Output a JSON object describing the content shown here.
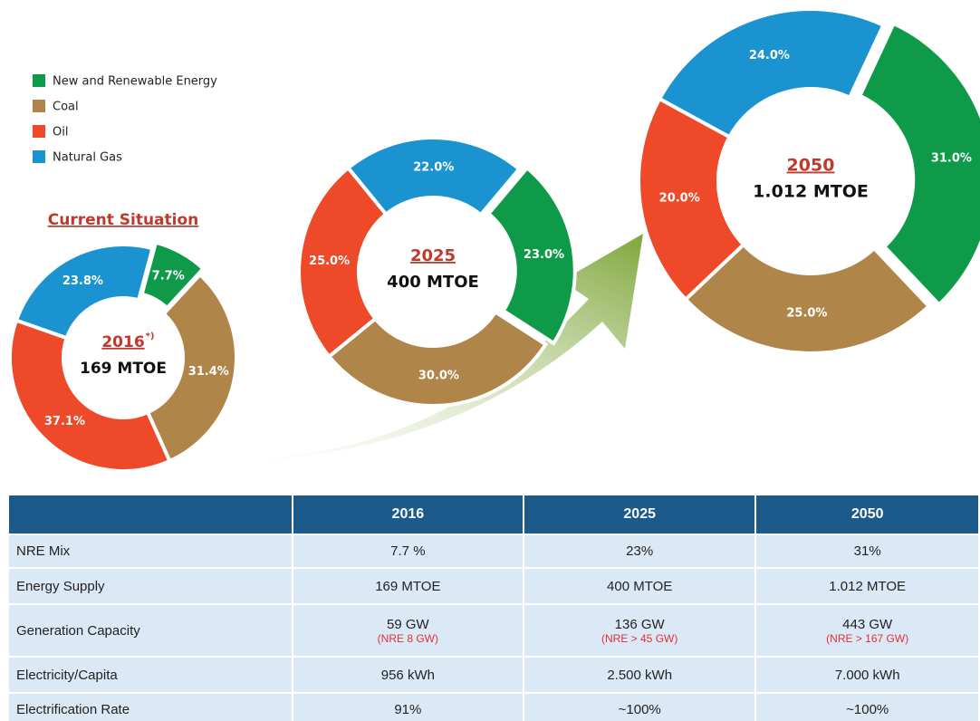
{
  "legend": {
    "items": [
      {
        "name": "New and Renewable Energy",
        "color": "#0f9a4a"
      },
      {
        "name": "Coal",
        "color": "#b0854a"
      },
      {
        "name": "Oil",
        "color": "#ee4a2a"
      },
      {
        "name": "Natural Gas",
        "color": "#1a93d0"
      }
    ]
  },
  "chart_data": [
    {
      "type": "donut",
      "title": "Current Situation",
      "center_title": "2016",
      "center_note": "*)",
      "center_subtitle": "169 MTOE",
      "values": [
        7.7,
        31.4,
        37.1,
        23.8
      ],
      "value_labels": [
        "7.7%",
        "31.4%",
        "37.1%",
        "23.8%"
      ]
    },
    {
      "type": "donut",
      "center_title": "2025",
      "center_subtitle": "400 MTOE",
      "values": [
        23.0,
        30.0,
        25.0,
        22.0
      ],
      "value_labels": [
        "23.0%",
        "30.0%",
        "25.0%",
        "22.0%"
      ]
    },
    {
      "type": "donut",
      "center_title": "2050",
      "center_subtitle": "1.012 MTOE",
      "values": [
        31.0,
        25.0,
        20.0,
        24.0
      ],
      "value_labels": [
        "31.0%",
        "25.0%",
        "20.0%",
        "24.0%"
      ]
    }
  ],
  "table": {
    "header": [
      "2016",
      "2025",
      "2050"
    ],
    "rows": [
      {
        "label": "NRE Mix",
        "cells": [
          {
            "text": "7.7 %"
          },
          {
            "text": "23%"
          },
          {
            "text": "31%"
          }
        ]
      },
      {
        "label": "Energy Supply",
        "cells": [
          {
            "text": "169 MTOE"
          },
          {
            "text": "400 MTOE"
          },
          {
            "text": "1.012 MTOE"
          }
        ]
      },
      {
        "label": "Generation Capacity",
        "cells": [
          {
            "text": "59 GW",
            "note": "(NRE 8 GW)"
          },
          {
            "text": "136 GW",
            "note": "(NRE > 45 GW)"
          },
          {
            "text": "443 GW",
            "note": "(NRE > 167 GW)"
          }
        ]
      },
      {
        "label": "Electricity/Capita",
        "cells": [
          {
            "text": "956 kWh"
          },
          {
            "text": "2.500 kWh"
          },
          {
            "text": "7.000 kWh"
          }
        ]
      },
      {
        "label": "Electrification Rate",
        "cells": [
          {
            "text": "91%"
          },
          {
            "text": "~100%"
          },
          {
            "text": "~100%"
          }
        ]
      }
    ]
  }
}
